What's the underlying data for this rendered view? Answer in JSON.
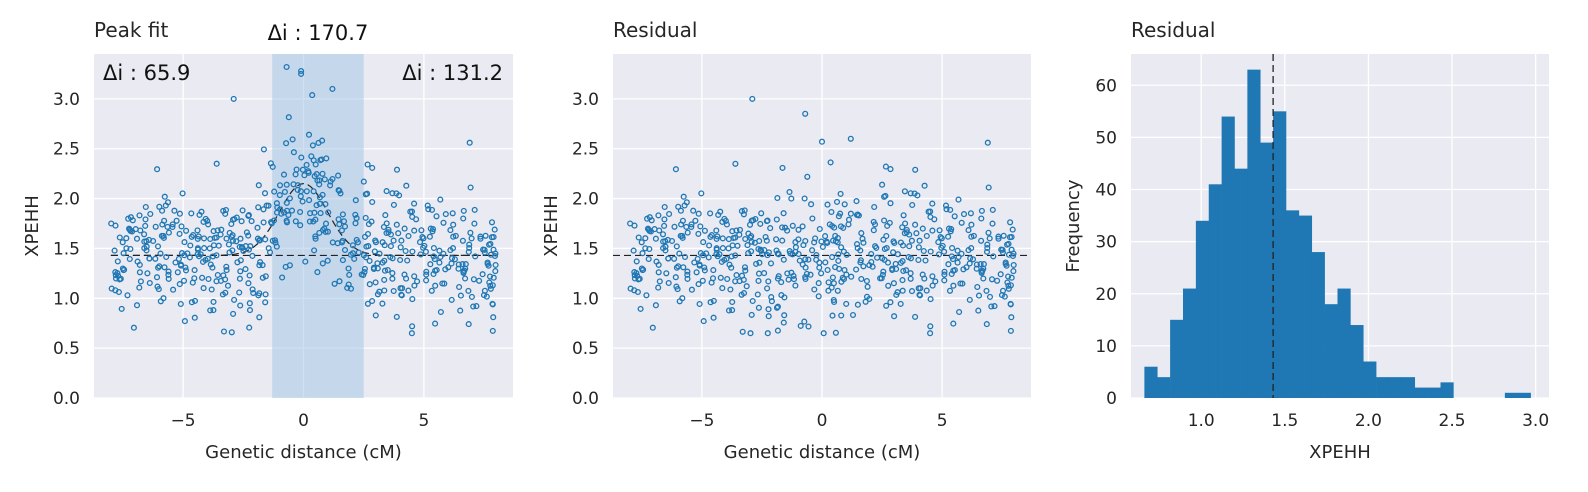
{
  "colors": {
    "background": "#eaeaf2",
    "grid": "#ffffff",
    "marker": "#1f77b4",
    "hist_fill": "#1f77b4",
    "band_fill": "#a6c6e6",
    "dashed": "#222222",
    "text": "#262626"
  },
  "chart_data": [
    {
      "type": "scatter",
      "title": "Peak fit",
      "xlabel": "Genetic distance (cM)",
      "ylabel": "XPEHH",
      "xlim": [
        -8.7,
        8.7
      ],
      "ylim": [
        0,
        3.45
      ],
      "xticks": [
        -5,
        0,
        5
      ],
      "xtick_labels": [
        "−5",
        "0",
        "5"
      ],
      "yticks": [
        0.0,
        0.5,
        1.0,
        1.5,
        2.0,
        2.5,
        3.0
      ],
      "ytick_labels": [
        "0.0",
        "0.5",
        "1.0",
        "1.5",
        "2.0",
        "2.5",
        "3.0"
      ],
      "grid": true,
      "shaded_band": {
        "x0": -1.3,
        "x1": 2.5
      },
      "baseline": 1.43,
      "peak_fit": {
        "center": 0.0,
        "height": 0.72,
        "width": 1.0,
        "x_range": [
          -8,
          8
        ]
      },
      "annotations": [
        {
          "label": "Δi : 65.9",
          "placement": "top-left"
        },
        {
          "label": "Δi : 170.7",
          "placement": "above-band"
        },
        {
          "label": "Δi : 131.2",
          "placement": "top-right"
        }
      ],
      "points": {
        "n": 600,
        "x_range": [
          -8,
          8
        ],
        "note_outliers": [
          [
            -0.7,
            3.32
          ],
          [
            -0.1,
            3.28
          ],
          [
            -0.1,
            3.25
          ],
          [
            1.2,
            3.1
          ],
          [
            -2.9,
            3.0
          ],
          [
            6.9,
            2.56
          ]
        ]
      }
    },
    {
      "type": "scatter",
      "title": "Residual",
      "xlabel": "Genetic distance (cM)",
      "ylabel": "XPEHH",
      "xlim": [
        -8.7,
        8.7
      ],
      "ylim": [
        0,
        3.45
      ],
      "xticks": [
        -5,
        0,
        5
      ],
      "xtick_labels": [
        "−5",
        "0",
        "5"
      ],
      "yticks": [
        0.0,
        0.5,
        1.0,
        1.5,
        2.0,
        2.5,
        3.0
      ],
      "ytick_labels": [
        "0.0",
        "0.5",
        "1.0",
        "1.5",
        "2.0",
        "2.5",
        "3.0"
      ],
      "grid": true,
      "baseline": 1.43,
      "points": {
        "n": 600,
        "x_range": [
          -8,
          8
        ],
        "note_outliers": [
          [
            -2.9,
            3.0
          ],
          [
            -0.7,
            2.85
          ],
          [
            0.0,
            2.57
          ],
          [
            1.2,
            2.6
          ],
          [
            6.9,
            2.56
          ]
        ]
      }
    },
    {
      "type": "bar",
      "subtype": "histogram",
      "title": "Residual",
      "xlabel": "XPEHH",
      "ylabel": "Frequency",
      "xlim": [
        0.58,
        3.08
      ],
      "ylim": [
        0,
        66
      ],
      "xticks": [
        1.0,
        1.5,
        2.0,
        2.5,
        3.0
      ],
      "xtick_labels": [
        "1.0",
        "1.5",
        "2.0",
        "2.5",
        "3.0"
      ],
      "yticks": [
        0,
        10,
        20,
        30,
        40,
        50,
        60
      ],
      "ytick_labels": [
        "0",
        "10",
        "20",
        "30",
        "40",
        "50",
        "60"
      ],
      "grid": true,
      "vline": 1.43,
      "bin_start": 0.66,
      "bin_width": 0.077,
      "counts": [
        6,
        4,
        15,
        21,
        34,
        41,
        54,
        44,
        63,
        49,
        55,
        36,
        35,
        28,
        18,
        21,
        14,
        7,
        4,
        4,
        4,
        2,
        2,
        3,
        0,
        0,
        0,
        0,
        1,
        1
      ]
    }
  ]
}
